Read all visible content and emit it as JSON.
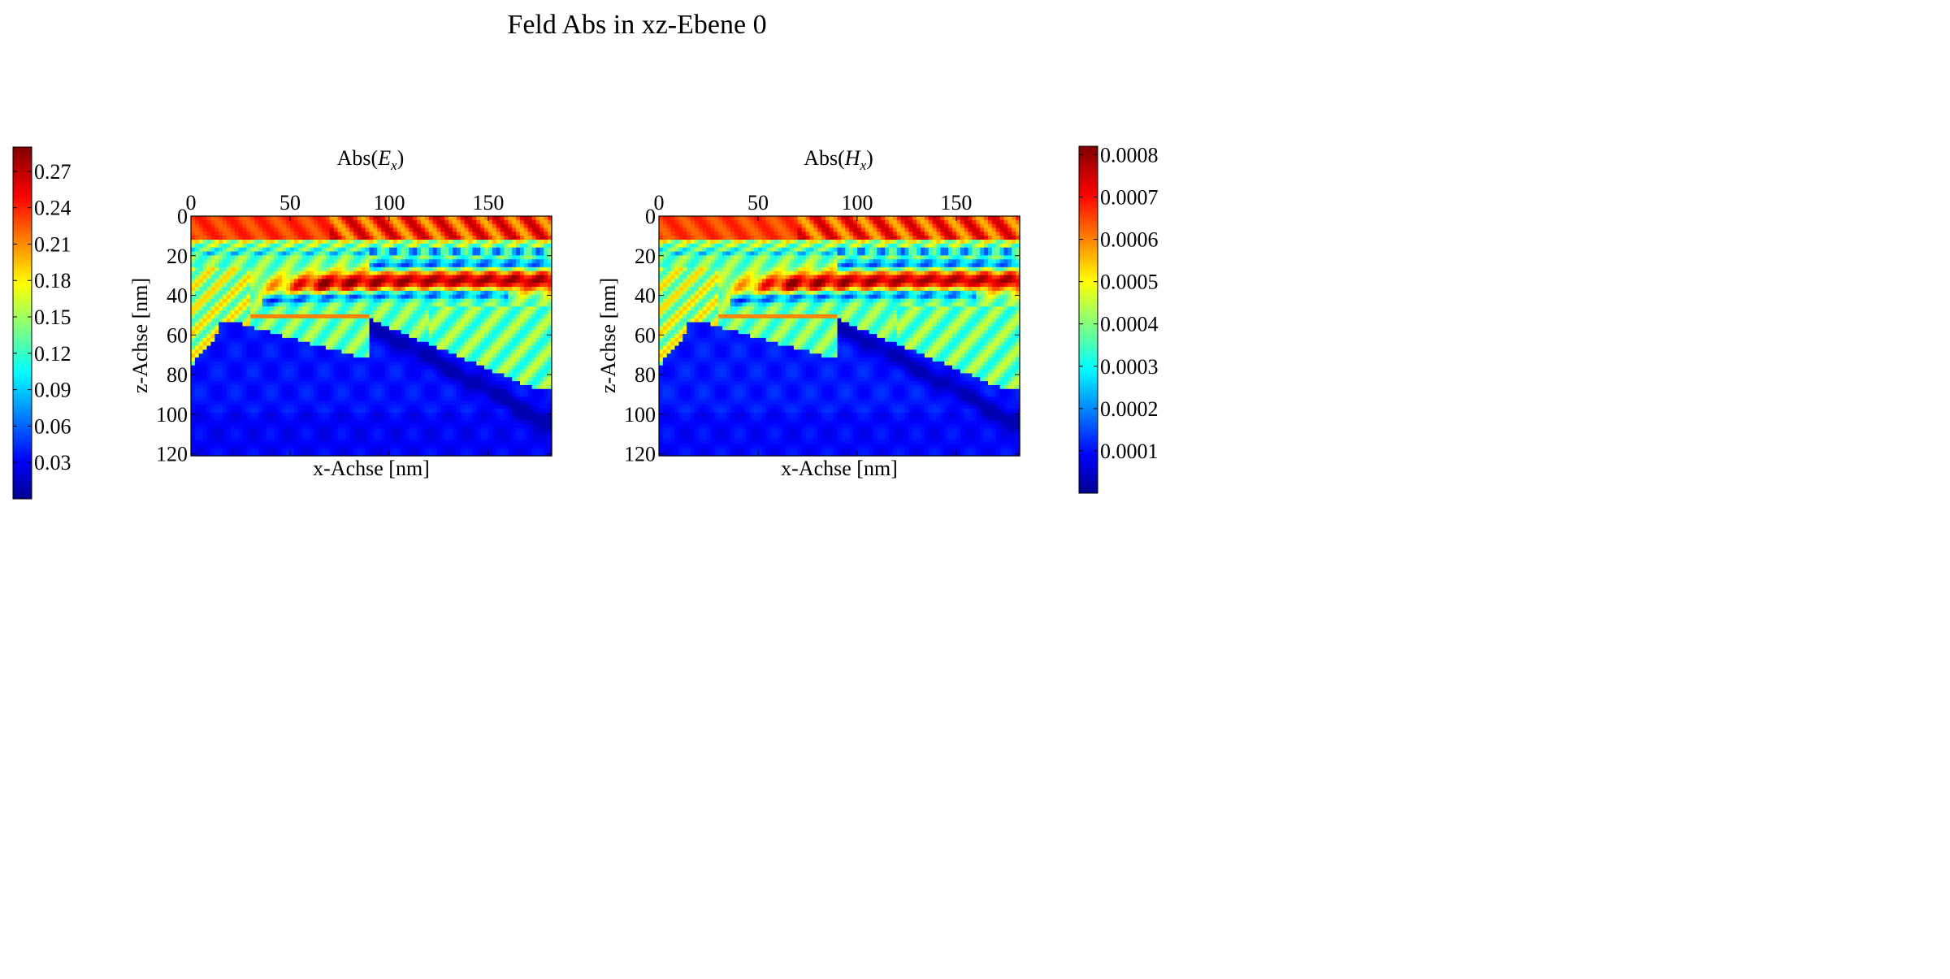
{
  "figure": {
    "title": "Feld Abs in xz-Ebene 0"
  },
  "chart_data": [
    {
      "type": "heatmap",
      "title_text": "Abs(",
      "title_sym": "E",
      "title_sub": "x",
      "title_close": ")",
      "xlabel": "x-Achse [nm]",
      "ylabel": "z-Achse [nm]",
      "xlim": [
        0,
        182
      ],
      "ylim": [
        0,
        121
      ],
      "y_inverted": true,
      "x_axis_position": "top",
      "xticks": [
        0,
        50,
        100,
        150
      ],
      "xtick_labels": [
        "0",
        "50",
        "100",
        "150"
      ],
      "yticks": [
        0,
        20,
        40,
        60,
        80,
        100,
        120
      ],
      "ytick_labels": [
        "0",
        "20",
        "40",
        "60",
        "80",
        "100",
        "120"
      ],
      "colormap": "jet",
      "colorbar": {
        "position": "left",
        "min": 0.0,
        "max": 0.29,
        "ticks": [
          0.03,
          0.06,
          0.09,
          0.12,
          0.15,
          0.18,
          0.21,
          0.24,
          0.27
        ],
        "tick_labels": [
          "0.03",
          "0.06",
          "0.09",
          "0.12",
          "0.15",
          "0.18",
          "0.21",
          "0.24",
          "0.27"
        ]
      }
    },
    {
      "type": "heatmap",
      "title_text": "Abs(",
      "title_sym": "H",
      "title_sub": "x",
      "title_close": ")",
      "xlabel": "x-Achse [nm]",
      "ylabel": "z-Achse [nm]",
      "xlim": [
        0,
        182
      ],
      "ylim": [
        0,
        121
      ],
      "y_inverted": true,
      "x_axis_position": "top",
      "xticks": [
        0,
        50,
        100,
        150
      ],
      "xtick_labels": [
        "0",
        "50",
        "100",
        "150"
      ],
      "yticks": [
        0,
        20,
        40,
        60,
        80,
        100,
        120
      ],
      "ytick_labels": [
        "0",
        "20",
        "40",
        "60",
        "80",
        "100",
        "120"
      ],
      "colormap": "jet",
      "colorbar": {
        "position": "right",
        "min": 0.0,
        "max": 0.00082,
        "ticks": [
          0.0001,
          0.0002,
          0.0003,
          0.0004,
          0.0005,
          0.0006,
          0.0007,
          0.0008
        ],
        "tick_labels": [
          "0.0001",
          "0.0002",
          "0.0003",
          "0.0004",
          "0.0005",
          "0.0006",
          "0.0007",
          "0.0008"
        ]
      }
    }
  ]
}
